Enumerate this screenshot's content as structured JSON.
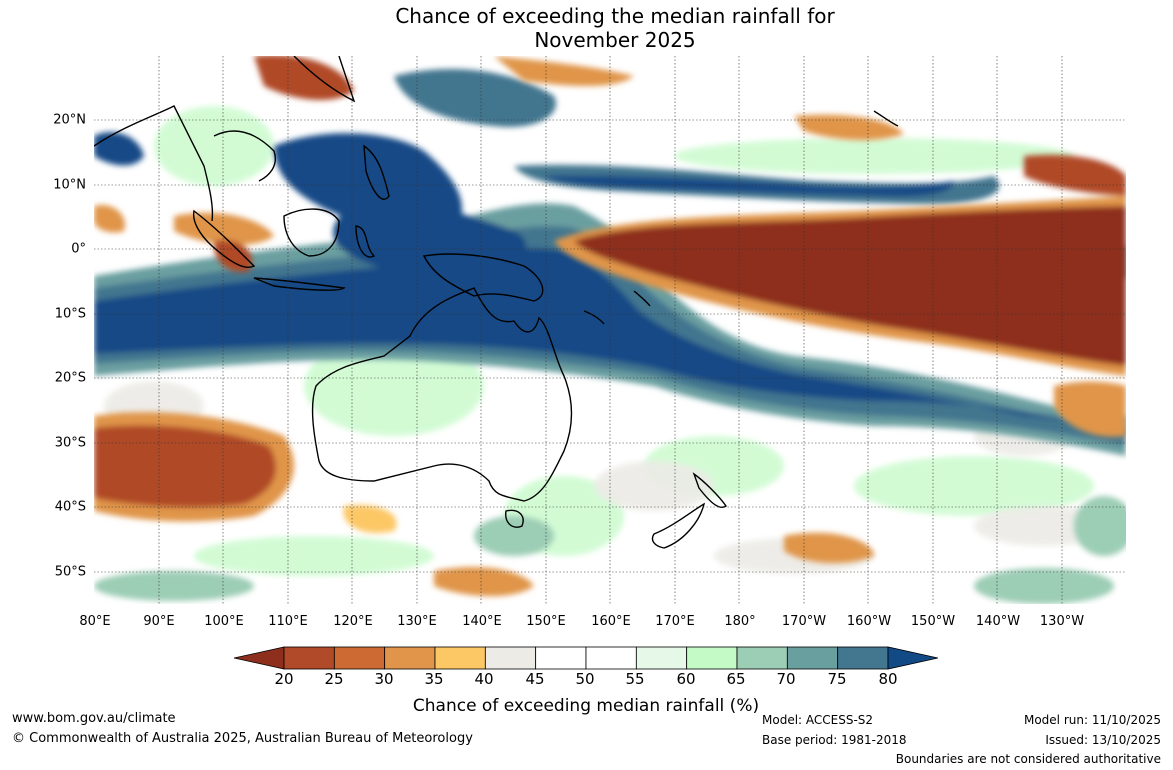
{
  "title": {
    "line1": "Chance of exceeding the median rainfall for",
    "line2": "November 2025"
  },
  "lat_labels": [
    "20°N",
    "10°N",
    "0°",
    "10°S",
    "20°S",
    "30°S",
    "40°S",
    "50°S"
  ],
  "lon_labels": [
    "80°E",
    "90°E",
    "100°E",
    "110°E",
    "120°E",
    "130°E",
    "140°E",
    "150°E",
    "160°E",
    "170°E",
    "180°",
    "170°W",
    "160°W",
    "150°W",
    "140°W",
    "130°W"
  ],
  "colorbar": {
    "ticks": [
      "20",
      "25",
      "30",
      "35",
      "40",
      "45",
      "50",
      "55",
      "60",
      "65",
      "70",
      "75",
      "80"
    ],
    "colors": [
      "#8e2f1d",
      "#b04a28",
      "#cd6a33",
      "#e0954a",
      "#fcc866",
      "#ecebe6",
      "#ffffff",
      "#ffffff",
      "#e6f8e8",
      "#c3fac6",
      "#9ccdb5",
      "#6a9fa0",
      "#43768f",
      "#124a86"
    ],
    "label": "Chance of exceeding median rainfall (%)"
  },
  "footer": {
    "website": "www.bom.gov.au/climate",
    "copyright": "© Commonwealth of Australia 2025, Australian Bureau of Meteorology",
    "model": "Model: ACCESS-S2",
    "base_period": "Base period: 1981-2018",
    "model_run": "Model run: 11/10/2025",
    "issued": "Issued: 13/10/2025",
    "disclaimer": "Boundaries are not considered authoritative"
  }
}
